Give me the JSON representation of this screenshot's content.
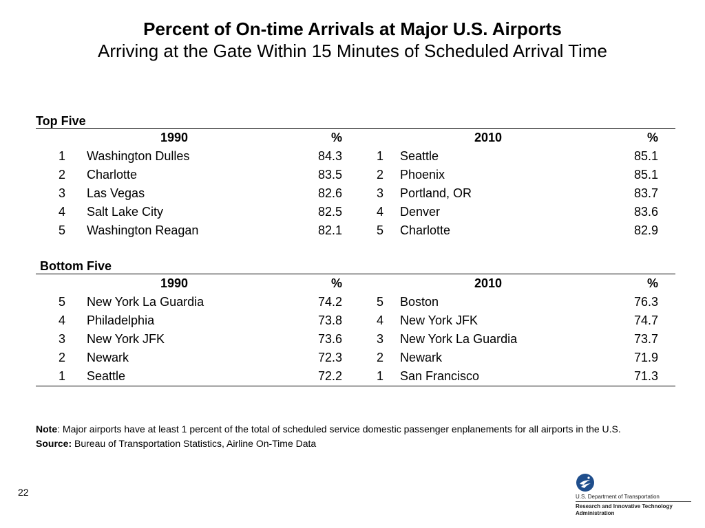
{
  "title": "Percent of On-time Arrivals at Major U.S. Airports",
  "subtitle": "Arriving at the Gate Within 15 Minutes of Scheduled Arrival Time",
  "top": {
    "label": "Top Five",
    "headers": {
      "year1": "1990",
      "pct1": "%",
      "year2": "2010",
      "pct2": "%"
    },
    "rows": [
      {
        "rank1": "1",
        "name1": "Washington Dulles",
        "pct1": "84.3",
        "rank2": "1",
        "name2": "Seattle",
        "pct2": "85.1",
        "bold2": true
      },
      {
        "rank1": "2",
        "name1": "Charlotte",
        "pct1": "83.5",
        "rank2": "2",
        "name2": "Phoenix",
        "pct2": "85.1"
      },
      {
        "rank1": "3",
        "name1": "Las Vegas",
        "pct1": "82.6",
        "rank2": "3",
        "name2": "Portland, OR",
        "pct2": "83.7"
      },
      {
        "rank1": "4",
        "name1": "Salt Lake City",
        "pct1": "82.5",
        "rank2": "4",
        "name2": "Denver",
        "pct2": "83.6"
      },
      {
        "rank1": "5",
        "name1": "Washington Reagan",
        "pct1": "82.1",
        "rank2": "5",
        "name2": "Charlotte",
        "pct2": "82.9"
      }
    ]
  },
  "bottom": {
    "label": "Bottom Five",
    "headers": {
      "year1": "1990",
      "pct1": "%",
      "year2": "2010",
      "pct2": "%"
    },
    "rows": [
      {
        "rank1": "5",
        "name1": "New York La Guardia",
        "pct1": "74.2",
        "rank2": "5",
        "name2": "Boston",
        "pct2": "76.3"
      },
      {
        "rank1": "4",
        "name1": "Philadelphia",
        "pct1": "73.8",
        "rank2": "4",
        "name2": "New York JFK",
        "pct2": "74.7"
      },
      {
        "rank1": "3",
        "name1": "New York JFK",
        "pct1": "73.6",
        "rank2": "3",
        "name2": "New York La Guardia",
        "pct2": "73.7"
      },
      {
        "rank1": "2",
        "name1": "Newark",
        "pct1": "72.3",
        "rank2": "2",
        "name2": "Newark",
        "pct2": "71.9"
      },
      {
        "rank1": "1",
        "name1": "Seattle",
        "pct1": "72.2",
        "rank2": "1",
        "name2": "San Francisco",
        "pct2": "71.3",
        "bold1": true
      }
    ]
  },
  "notes": {
    "note_label": "Note",
    "note_text": ": Major airports have at least 1 percent of the total of scheduled service domestic passenger enplanements for all airports in the U.S.",
    "source_label": "Source:",
    "source_text": " Bureau of Transportation Statistics, Airline On-Time Data"
  },
  "page_number": "22",
  "logo": {
    "icon": "dot-eagle-icon",
    "line1": "U.S. Department of Transportation",
    "line2": "Research and Innovative Technology",
    "line3": "Administration",
    "color": "#1f4e8c"
  }
}
